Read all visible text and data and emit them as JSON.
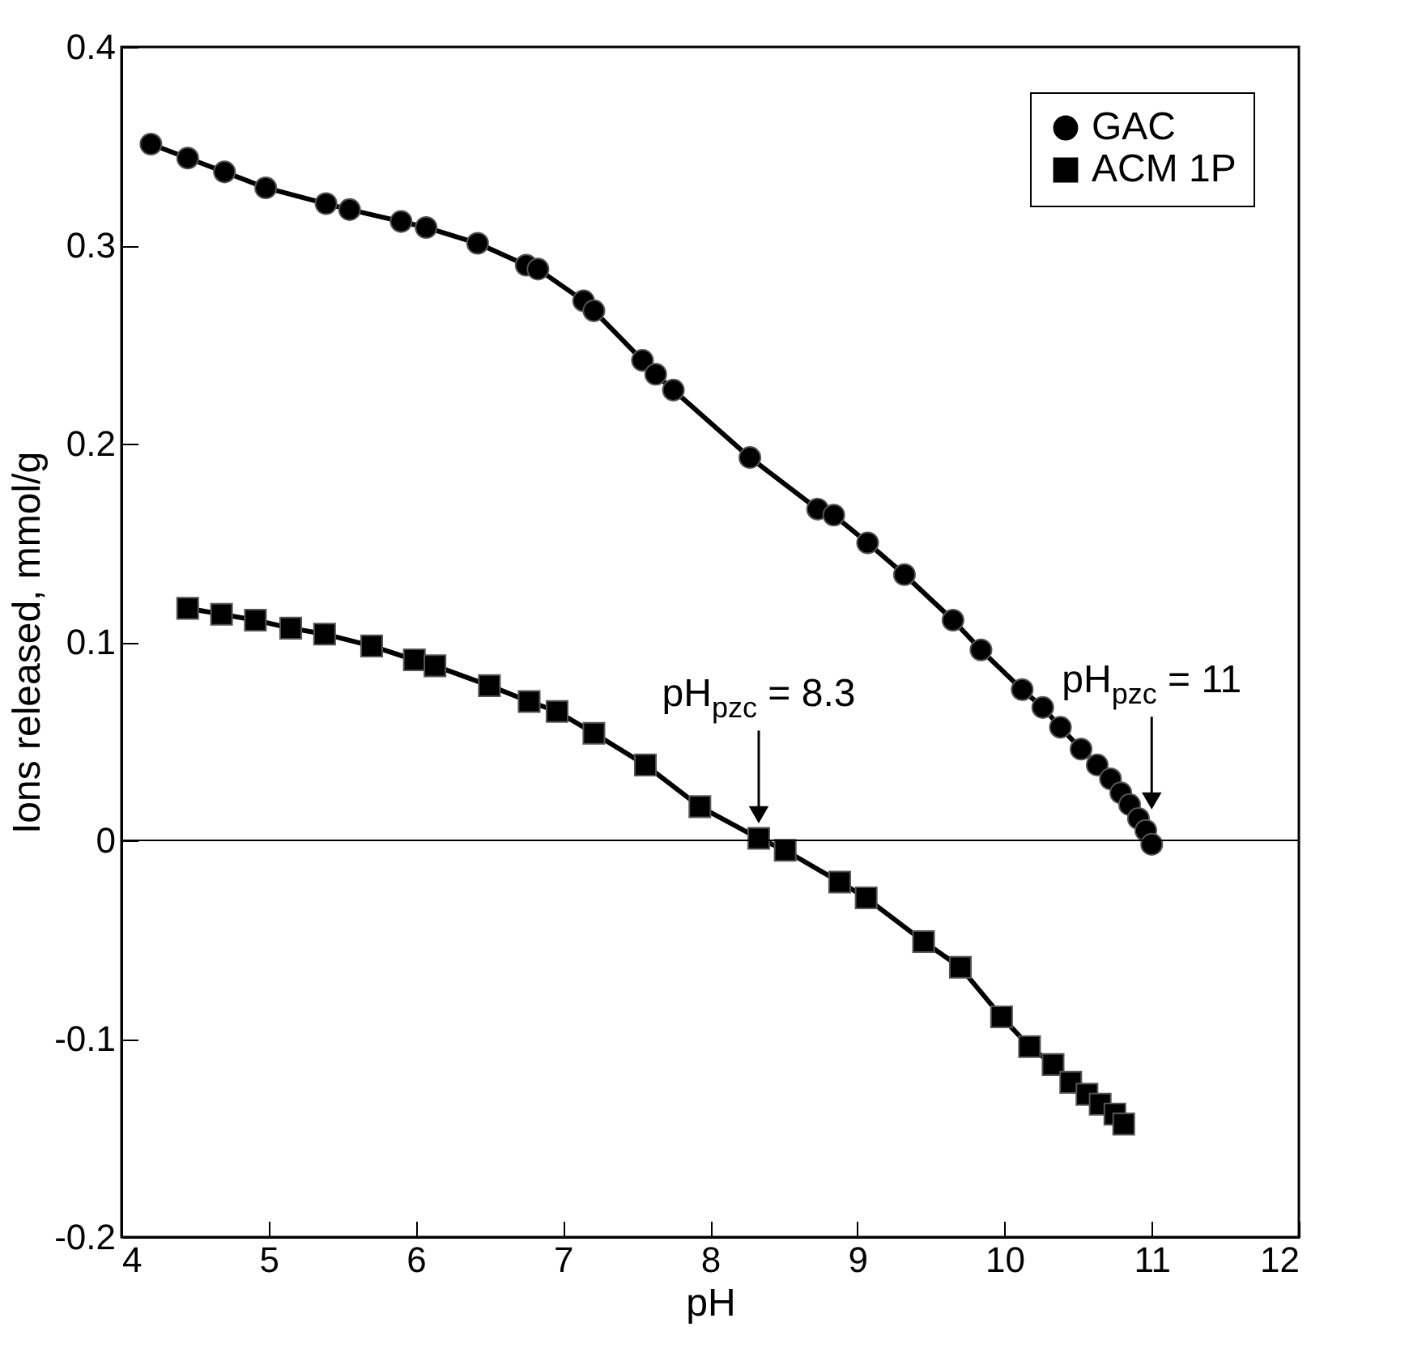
{
  "chart_data": {
    "type": "line",
    "xlabel": "pH",
    "ylabel": "Ions released, mmol/g",
    "xlim": [
      4,
      12
    ],
    "xticks": [
      4,
      5,
      6,
      7,
      8,
      9,
      10,
      11,
      12
    ],
    "ylim": [
      -0.2,
      0.4
    ],
    "yticks": [
      -0.2,
      -0.1,
      0,
      0.1,
      0.2,
      0.3,
      0.4
    ],
    "grid": false,
    "legend": "top right",
    "line_style": "solid",
    "series": [
      {
        "name": "GAC",
        "color": "#000000",
        "marker": "circle",
        "x": [
          4.2,
          4.45,
          4.7,
          4.98,
          5.39,
          5.55,
          5.9,
          6.07,
          6.42,
          6.75,
          6.83,
          7.14,
          7.21,
          7.54,
          7.63,
          7.75,
          8.27,
          8.73,
          8.84,
          9.07,
          9.32,
          9.65,
          9.84,
          10.12,
          10.26,
          10.38,
          10.52,
          10.63,
          10.72,
          10.79,
          10.85,
          10.91,
          10.96,
          11.0
        ],
        "values": [
          0.351,
          0.344,
          0.337,
          0.329,
          0.321,
          0.318,
          0.312,
          0.309,
          0.301,
          0.29,
          0.288,
          0.272,
          0.267,
          0.242,
          0.235,
          0.227,
          0.193,
          0.167,
          0.164,
          0.15,
          0.134,
          0.111,
          0.096,
          0.076,
          0.067,
          0.057,
          0.046,
          0.038,
          0.031,
          0.024,
          0.018,
          0.011,
          0.005,
          -0.002
        ]
      },
      {
        "name": "ACM 1P",
        "color": "#000000",
        "marker": "square",
        "x": [
          4.45,
          4.68,
          4.91,
          5.15,
          5.38,
          5.7,
          5.99,
          6.13,
          6.5,
          6.77,
          6.96,
          7.21,
          7.56,
          7.93,
          8.33,
          8.51,
          8.88,
          9.06,
          9.45,
          9.7,
          9.98,
          10.17,
          10.33,
          10.45,
          10.56,
          10.65,
          10.75,
          10.81
        ],
        "values": [
          0.117,
          0.114,
          0.111,
          0.107,
          0.104,
          0.098,
          0.091,
          0.088,
          0.078,
          0.07,
          0.065,
          0.054,
          0.038,
          0.017,
          0.001,
          -0.005,
          -0.021,
          -0.029,
          -0.051,
          -0.064,
          -0.089,
          -0.104,
          -0.113,
          -0.122,
          -0.128,
          -0.133,
          -0.138,
          -0.143
        ]
      }
    ],
    "ref_lines": [
      {
        "axis": "y",
        "value": 0,
        "color": "#000000"
      }
    ],
    "annotations": [
      {
        "text": "pH$_{pzc}$ = 8.3",
        "x": 8.33,
        "y": 0.008
      },
      {
        "text": "pH$_{pzc}$ = 11",
        "x": 11.0,
        "y": 0.015
      }
    ]
  }
}
